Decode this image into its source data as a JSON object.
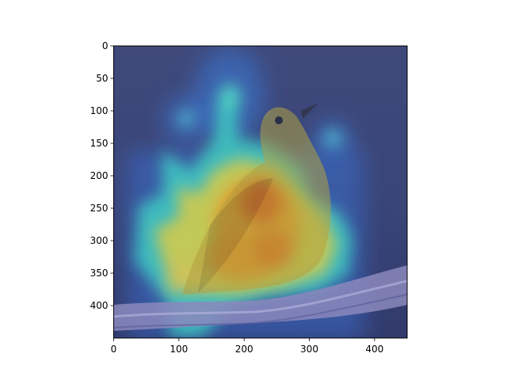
{
  "figure": {
    "x_ticks": [
      "0",
      "100",
      "200",
      "300",
      "400"
    ],
    "y_ticks": [
      "0",
      "50",
      "100",
      "150",
      "200",
      "250",
      "300",
      "350",
      "400"
    ],
    "x_range": [
      0,
      450
    ],
    "y_range": [
      0,
      450
    ],
    "y_axis_inverted": true,
    "overlay": "jet colormap attention heatmap over a photo of a yellow-breasted bird perched on a branch",
    "colors": {
      "background_photo": "#3d4a7a",
      "bird_body": "#c8a93a",
      "branch": "#8a87b8",
      "heat_high": "#e82a10",
      "heat_mid": "#f2d23a",
      "heat_low": "#3fd6c9"
    }
  }
}
